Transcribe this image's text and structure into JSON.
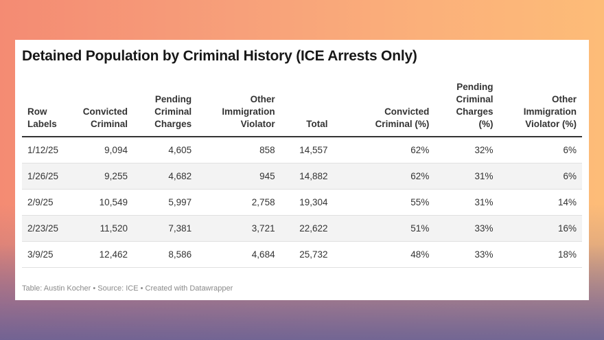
{
  "chart_data": {
    "type": "table",
    "title": "Detained Population by Criminal History (ICE Arrests Only)",
    "columns": [
      [
        "Row",
        "Labels"
      ],
      [
        "Convicted",
        "Criminal"
      ],
      [
        "Pending",
        "Criminal",
        "Charges"
      ],
      [
        "Other",
        "Immigration",
        "Violator"
      ],
      [
        "Total"
      ],
      [
        "Convicted",
        "Criminal (%)"
      ],
      [
        "Pending",
        "Criminal",
        "Charges",
        "(%)"
      ],
      [
        "Other",
        "Immigration",
        "Violator (%)"
      ]
    ],
    "rows": [
      [
        "1/12/25",
        "9,094",
        "4,605",
        "858",
        "14,557",
        "62%",
        "32%",
        "6%"
      ],
      [
        "1/26/25",
        "9,255",
        "4,682",
        "945",
        "14,882",
        "62%",
        "31%",
        "6%"
      ],
      [
        "2/9/25",
        "10,549",
        "5,997",
        "2,758",
        "19,304",
        "55%",
        "31%",
        "14%"
      ],
      [
        "2/23/25",
        "11,520",
        "7,381",
        "3,721",
        "22,622",
        "51%",
        "33%",
        "16%"
      ],
      [
        "3/9/25",
        "12,462",
        "8,586",
        "4,684",
        "25,732",
        "48%",
        "33%",
        "18%"
      ]
    ],
    "footer": "Table: Austin Kocher • Source: ICE • Created with Datawrapper"
  }
}
